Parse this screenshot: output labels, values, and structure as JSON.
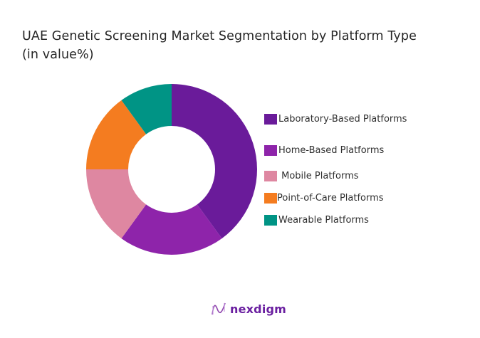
{
  "title_line1": "UAE Genetic Screening Market Segmentation by Platform Type",
  "title_line2": "(in value%)",
  "legend": [
    {
      "label": "Laboratory-Based Platforms",
      "color": "#6a1b9a"
    },
    {
      "label": "Home-Based Platforms",
      "color": "#8e24aa"
    },
    {
      "label": " Mobile Platforms",
      "color": "#de87a1"
    },
    {
      "label": "Point-of-Care Platforms",
      "color": "#f47c20"
    },
    {
      "label": "Wearable Platforms",
      "color": "#009485"
    }
  ],
  "brand": {
    "name": "nexdigm"
  },
  "chart_data": {
    "type": "pie",
    "subtype": "donut",
    "title": "UAE Genetic Screening Market Segmentation by Platform Type (in value%)",
    "categories": [
      "Laboratory-Based Platforms",
      "Home-Based Platforms",
      "Mobile Platforms",
      "Point-of-Care Platforms",
      "Wearable Platforms"
    ],
    "values": [
      40,
      20,
      15,
      15,
      10
    ],
    "colors": [
      "#6a1b9a",
      "#8e24aa",
      "#de87a1",
      "#f47c20",
      "#009485"
    ],
    "start_angle": "12 o'clock, clockwise",
    "legend_position": "right",
    "data_labels": false
  }
}
